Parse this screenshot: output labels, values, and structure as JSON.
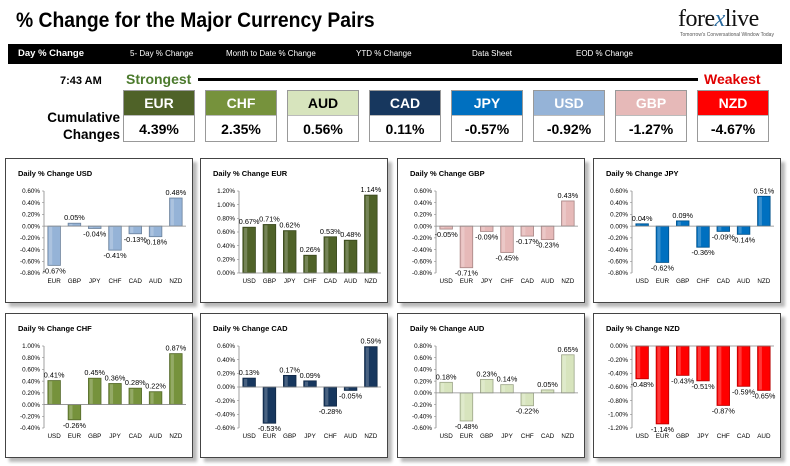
{
  "header": {
    "title": "% Change for the Major Currency Pairs",
    "logo_brand_left": "fore",
    "logo_brand_x": "x",
    "logo_brand_right": "live",
    "logo_tagline": "Tomorrow's Conversational Window Today"
  },
  "nav": {
    "items": [
      {
        "label": "Day % Change",
        "active": true
      },
      {
        "label": "5- Day % Change",
        "active": false
      },
      {
        "label": "Month to Date % Change",
        "active": false
      },
      {
        "label": "YTD % Change",
        "active": false
      },
      {
        "label": "Data Sheet",
        "active": false
      },
      {
        "label": "EOD % Change",
        "active": false
      }
    ]
  },
  "summary": {
    "time": "7:43 AM",
    "strongest_label": "Strongest",
    "weakest_label": "Weakest",
    "cumulative_label_line1": "Cumulative",
    "cumulative_label_line2": "Changes",
    "currencies": [
      {
        "code": "EUR",
        "value": "4.39%",
        "color": "#4f6228",
        "text_color": "#ffffff"
      },
      {
        "code": "CHF",
        "value": "2.35%",
        "color": "#76923c",
        "text_color": "#ffffff"
      },
      {
        "code": "AUD",
        "value": "0.56%",
        "color": "#d7e4bd",
        "text_color": "#000000"
      },
      {
        "code": "CAD",
        "value": "0.11%",
        "color": "#17375e",
        "text_color": "#ffffff"
      },
      {
        "code": "JPY",
        "value": "-0.57%",
        "color": "#0070c0",
        "text_color": "#ffffff"
      },
      {
        "code": "USD",
        "value": "-0.92%",
        "color": "#95b3d7",
        "text_color": "#ffffff"
      },
      {
        "code": "GBP",
        "value": "-1.27%",
        "color": "#e6b9b8",
        "text_color": "#ffffff"
      },
      {
        "code": "NZD",
        "value": "-4.67%",
        "color": "#ff0000",
        "text_color": "#ffffff"
      }
    ]
  },
  "chart_data": [
    {
      "type": "bar",
      "title": "Daily % Change USD",
      "categories": [
        "EUR",
        "GBP",
        "JPY",
        "CHF",
        "CAD",
        "AUD",
        "NZD"
      ],
      "values": [
        -0.67,
        0.05,
        -0.04,
        -0.41,
        -0.13,
        -0.18,
        0.48
      ],
      "labels": [
        "-0.67%",
        "0.05%",
        "-0.04%",
        "-0.41%",
        "-0.13%",
        "-0.18%",
        "0.48%"
      ],
      "yticks": [
        0.6,
        0.4,
        0.2,
        0,
        -0.2,
        -0.4,
        -0.6,
        -0.8
      ],
      "ytick_labels": [
        "0.60%",
        "0.40%",
        "0.20%",
        "0.00%",
        "-0.20%",
        "-0.40%",
        "-0.60%",
        "-0.80%"
      ],
      "ylim": [
        -0.8,
        0.6
      ],
      "color": "#95b3d7"
    },
    {
      "type": "bar",
      "title": "Daily % Change EUR",
      "categories": [
        "USD",
        "GBP",
        "JPY",
        "CHF",
        "CAD",
        "AUD",
        "NZD"
      ],
      "values": [
        0.67,
        0.71,
        0.62,
        0.26,
        0.53,
        0.48,
        1.14
      ],
      "labels": [
        "0.67%",
        "0.71%",
        "0.62%",
        "0.26%",
        "0.53%",
        "0.48%",
        "1.14%"
      ],
      "yticks": [
        1.2,
        1.0,
        0.8,
        0.6,
        0.4,
        0.2,
        0
      ],
      "ytick_labels": [
        "1.20%",
        "1.00%",
        "0.80%",
        "0.60%",
        "0.40%",
        "0.20%",
        "0.00%"
      ],
      "ylim": [
        0,
        1.2
      ],
      "color": "#4f6228"
    },
    {
      "type": "bar",
      "title": "Daily % Change GBP",
      "categories": [
        "USD",
        "EUR",
        "JPY",
        "CHF",
        "CAD",
        "AUD",
        "NZD"
      ],
      "values": [
        -0.05,
        -0.71,
        -0.09,
        -0.45,
        -0.17,
        -0.23,
        0.43
      ],
      "labels": [
        "-0.05%",
        "-0.71%",
        "-0.09%",
        "-0.45%",
        "-0.17%",
        "-0.23%",
        "0.43%"
      ],
      "yticks": [
        0.6,
        0.4,
        0.2,
        0,
        -0.2,
        -0.4,
        -0.6,
        -0.8
      ],
      "ytick_labels": [
        "0.60%",
        "0.40%",
        "0.20%",
        "0.00%",
        "-0.20%",
        "-0.40%",
        "-0.60%",
        "-0.80%"
      ],
      "ylim": [
        -0.8,
        0.6
      ],
      "color": "#e6b9b8"
    },
    {
      "type": "bar",
      "title": "Daily % Change JPY",
      "categories": [
        "USD",
        "EUR",
        "GBP",
        "CHF",
        "CAD",
        "AUD",
        "NZD"
      ],
      "values": [
        0.04,
        -0.62,
        0.09,
        -0.36,
        -0.09,
        -0.14,
        0.51
      ],
      "labels": [
        "0.04%",
        "-0.62%",
        "0.09%",
        "-0.36%",
        "-0.09%",
        "-0.14%",
        "0.51%"
      ],
      "yticks": [
        0.6,
        0.4,
        0.2,
        0,
        -0.2,
        -0.4,
        -0.6,
        -0.8
      ],
      "ytick_labels": [
        "0.60%",
        "0.40%",
        "0.20%",
        "0.00%",
        "-0.20%",
        "-0.40%",
        "-0.60%",
        "-0.80%"
      ],
      "ylim": [
        -0.8,
        0.6
      ],
      "color": "#0070c0"
    },
    {
      "type": "bar",
      "title": "Daily % Change CHF",
      "categories": [
        "USD",
        "EUR",
        "GBP",
        "JPY",
        "CAD",
        "AUD",
        "NZD"
      ],
      "values": [
        0.41,
        -0.26,
        0.45,
        0.36,
        0.28,
        0.22,
        0.87
      ],
      "labels": [
        "0.41%",
        "-0.26%",
        "0.45%",
        "0.36%",
        "0.28%",
        "0.22%",
        "0.87%"
      ],
      "yticks": [
        1.0,
        0.8,
        0.6,
        0.4,
        0.2,
        0,
        -0.2,
        -0.4
      ],
      "ytick_labels": [
        "1.00%",
        "0.80%",
        "0.60%",
        "0.40%",
        "0.20%",
        "0.00%",
        "-0.20%",
        "-0.40%"
      ],
      "ylim": [
        -0.4,
        1.0
      ],
      "color": "#76923c"
    },
    {
      "type": "bar",
      "title": "Daily % Change CAD",
      "categories": [
        "USD",
        "EUR",
        "GBP",
        "JPY",
        "CHF",
        "AUD",
        "NZD"
      ],
      "values": [
        0.13,
        -0.53,
        0.17,
        0.09,
        -0.28,
        -0.05,
        0.59
      ],
      "labels": [
        "0.13%",
        "-0.53%",
        "0.17%",
        "0.09%",
        "-0.28%",
        "-0.05%",
        "0.59%"
      ],
      "yticks": [
        0.6,
        0.4,
        0.2,
        0,
        -0.2,
        -0.4,
        -0.6
      ],
      "ytick_labels": [
        "0.60%",
        "0.40%",
        "0.20%",
        "0.00%",
        "-0.20%",
        "-0.40%",
        "-0.60%"
      ],
      "ylim": [
        -0.6,
        0.6
      ],
      "color": "#17375e"
    },
    {
      "type": "bar",
      "title": "Daily % Change AUD",
      "categories": [
        "USD",
        "EUR",
        "GBP",
        "JPY",
        "CHF",
        "CAD",
        "NZD"
      ],
      "values": [
        0.18,
        -0.48,
        0.23,
        0.14,
        -0.22,
        0.05,
        0.65
      ],
      "labels": [
        "0.18%",
        "-0.48%",
        "0.23%",
        "0.14%",
        "-0.22%",
        "0.05%",
        "0.65%"
      ],
      "yticks": [
        0.8,
        0.6,
        0.4,
        0.2,
        0,
        -0.2,
        -0.4,
        -0.6
      ],
      "ytick_labels": [
        "0.80%",
        "0.60%",
        "0.40%",
        "0.20%",
        "0.00%",
        "-0.20%",
        "-0.40%",
        "-0.60%"
      ],
      "ylim": [
        -0.6,
        0.8
      ],
      "color": "#d7e4bd"
    },
    {
      "type": "bar",
      "title": "Daily % Change NZD",
      "categories": [
        "USD",
        "EUR",
        "GBP",
        "JPY",
        "CHF",
        "CAD",
        "AUD"
      ],
      "values": [
        -0.48,
        -1.14,
        -0.43,
        -0.51,
        -0.87,
        -0.59,
        -0.65
      ],
      "labels": [
        "-0.48%",
        "-1.14%",
        "-0.43%",
        "-0.51%",
        "-0.87%",
        "-0.59%",
        "-0.65%"
      ],
      "yticks": [
        0,
        -0.2,
        -0.4,
        -0.6,
        -0.8,
        -1.0,
        -1.2
      ],
      "ytick_labels": [
        "0.00%",
        "-0.20%",
        "-0.40%",
        "-0.60%",
        "-0.80%",
        "-1.00%",
        "-1.20%"
      ],
      "ylim": [
        -1.2,
        0
      ],
      "color": "#ff0000"
    }
  ]
}
